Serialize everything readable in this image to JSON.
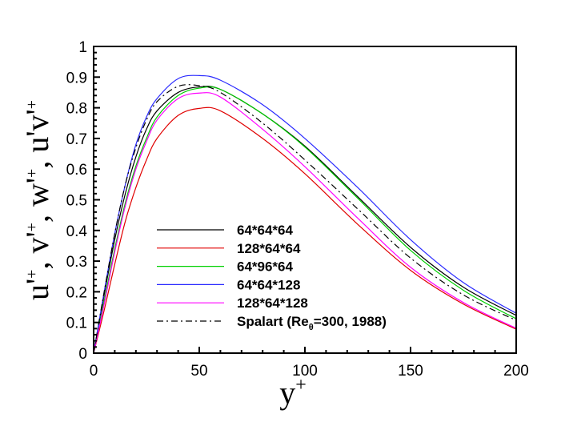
{
  "chart_data": {
    "type": "line",
    "title": "",
    "xlabel": "y+",
    "ylabel": "u'+, v'+, w'+, u'v'+",
    "xlim": [
      0,
      200
    ],
    "ylim": [
      0,
      1
    ],
    "xticks": [
      "0",
      "50",
      "100",
      "150",
      "200"
    ],
    "xtick_values": [
      0,
      50,
      100,
      150,
      200
    ],
    "yticks": [
      "0",
      "0.1",
      "0.2",
      "0.3",
      "0.4",
      "0.5",
      "0.6",
      "0.7",
      "0.8",
      "0.9",
      "1"
    ],
    "ytick_values": [
      0,
      0.1,
      0.2,
      0.3,
      0.4,
      0.5,
      0.6,
      0.7,
      0.8,
      0.9,
      1
    ],
    "grid": false,
    "legend_placement": "lower-left",
    "x": [
      0,
      5,
      10,
      15,
      20,
      25,
      30,
      40,
      50,
      60,
      80,
      100,
      125,
      150,
      175,
      200
    ],
    "series": [
      {
        "name": "64*64*64",
        "color": "#000000",
        "dash": "solid",
        "values": [
          0,
          0.19,
          0.37,
          0.52,
          0.64,
          0.73,
          0.79,
          0.85,
          0.868,
          0.86,
          0.78,
          0.675,
          0.51,
          0.345,
          0.215,
          0.123
        ]
      },
      {
        "name": "128*64*64",
        "color": "#e00000",
        "dash": "solid",
        "values": [
          0,
          0.14,
          0.29,
          0.43,
          0.54,
          0.63,
          0.7,
          0.775,
          0.798,
          0.79,
          0.7,
          0.585,
          0.42,
          0.27,
          0.16,
          0.078
        ]
      },
      {
        "name": "64*96*64",
        "color": "#00d000",
        "dash": "solid",
        "values": [
          0,
          0.17,
          0.34,
          0.49,
          0.61,
          0.7,
          0.77,
          0.84,
          0.864,
          0.86,
          0.78,
          0.672,
          0.505,
          0.335,
          0.205,
          0.112
        ]
      },
      {
        "name": "64*64*128",
        "color": "#2a2aff",
        "dash": "solid",
        "values": [
          0,
          0.2,
          0.39,
          0.55,
          0.68,
          0.77,
          0.83,
          0.895,
          0.905,
          0.89,
          0.81,
          0.7,
          0.54,
          0.37,
          0.23,
          0.13
        ]
      },
      {
        "name": "128*64*128",
        "color": "#ff00ff",
        "dash": "solid",
        "values": [
          0,
          0.16,
          0.33,
          0.48,
          0.6,
          0.69,
          0.76,
          0.83,
          0.848,
          0.835,
          0.73,
          0.608,
          0.44,
          0.28,
          0.165,
          0.081
        ]
      },
      {
        "name": "Spalart (Reθ=300, 1988)",
        "color": "#000000",
        "dash": "dashdot",
        "values": [
          0,
          0.2,
          0.39,
          0.55,
          0.67,
          0.76,
          0.82,
          0.87,
          0.872,
          0.85,
          0.75,
          0.63,
          0.47,
          0.31,
          0.19,
          0.107
        ]
      }
    ]
  }
}
